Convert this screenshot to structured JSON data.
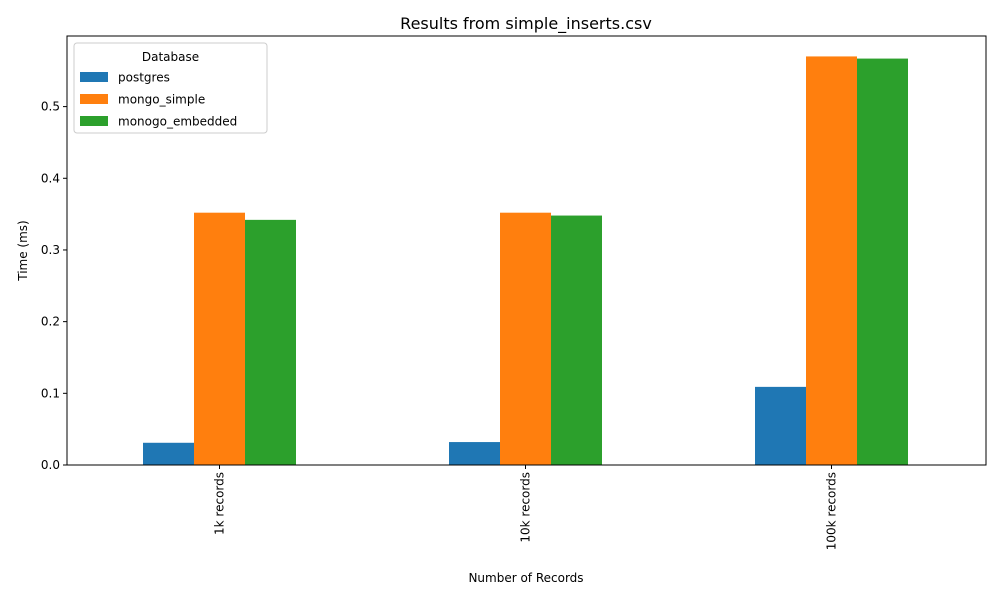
{
  "chart_data": {
    "type": "bar",
    "title": "Results from simple_inserts.csv",
    "xlabel": "Number of Records",
    "ylabel": "Time (ms)",
    "categories": [
      "1k records",
      "10k records",
      "100k records"
    ],
    "series": [
      {
        "name": "postgres",
        "color": "#1f77b4",
        "values": [
          0.031,
          0.032,
          0.109
        ]
      },
      {
        "name": " mongo_simple",
        "color": "#ff7f0e",
        "values": [
          0.352,
          0.352,
          0.57
        ]
      },
      {
        "name": " monogo_embedded",
        "color": "#2ca02c",
        "values": [
          0.342,
          0.348,
          0.567
        ]
      }
    ],
    "ylim": [
      0,
      0.5985
    ],
    "yticks": [
      "0.0",
      "0.1",
      "0.2",
      "0.3",
      "0.4",
      "0.5"
    ],
    "grid": false,
    "legend": {
      "title": "Database",
      "placement": "top-left"
    }
  }
}
